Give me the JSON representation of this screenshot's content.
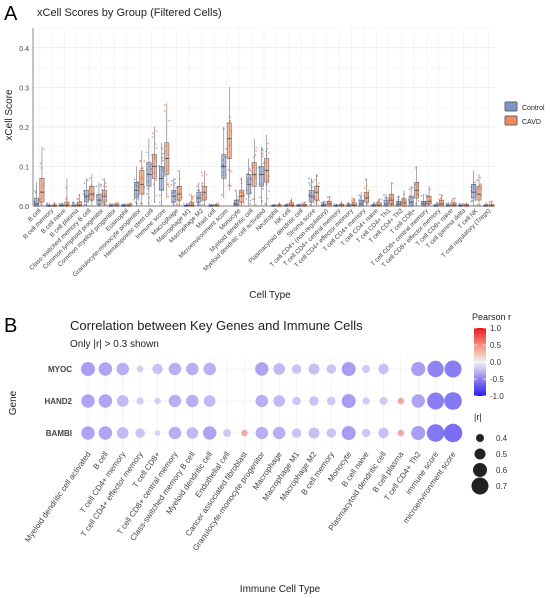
{
  "panels": {
    "a_letter": "A",
    "b_letter": "B"
  },
  "chart_data": [
    {
      "type": "box",
      "title": "xCell Scores by Group (Filtered Cells)",
      "xlabel": "Cell Type",
      "ylabel": "xCell Score",
      "ylim": [
        0,
        0.45
      ],
      "yticks": [
        "0.0",
        "0.1",
        "0.2",
        "0.3",
        "0.4"
      ],
      "grid": true,
      "legend_position": "right",
      "series": [
        {
          "name": "Control",
          "color": "#7f93c9"
        },
        {
          "name": "CAVD",
          "color": "#f08a5d"
        }
      ],
      "categories": [
        "B cell",
        "B cell memory",
        "B cell naive",
        "B cell plasma",
        "Class-switched memory B cell",
        "Common lymphoid progenitor",
        "Common myeloid progenitor",
        "Eosinophil",
        "Granulocyte-monocyte progenitor",
        "Hematopoietic stem cell",
        "Immune score",
        "Macrophage",
        "Macrophage M1",
        "Macrophage M2",
        "Mast cell",
        "Microenvironment score",
        "Monocyte",
        "Myeloid dendritic cell",
        "Myeloid dendritic cell activated",
        "Neutrophil",
        "NK cell",
        "Plasmacytoid dendritic cell",
        "Stroma score",
        "T cell CD4+ (non-regulatory)",
        "T cell CD4+ central memory",
        "T cell CD4+ effector memory",
        "T cell CD4+ memory",
        "T cell CD4+ naive",
        "T cell CD4+ Th1",
        "T cell CD4+ Th2",
        "T cell CD8+",
        "T cell CD8+ central memory",
        "T cell CD8+ effector memory",
        "T cell CD8+ naive",
        "T cell gamma delta",
        "T cell NK",
        "T cell regulatory (Tregs)"
      ],
      "boxes": [
        {
          "control": [
            0.0,
            0.0,
            0.005,
            0.02,
            0.06
          ],
          "cavd": [
            0.0,
            0.01,
            0.035,
            0.07,
            0.15
          ]
        },
        {
          "control": [
            0.0,
            0.0,
            0.0,
            0.002,
            0.008
          ],
          "cavd": [
            0.0,
            0.0,
            0.0,
            0.003,
            0.01
          ]
        },
        {
          "control": [
            0.0,
            0.0,
            0.0,
            0.002,
            0.006
          ],
          "cavd": [
            0.0,
            0.0,
            0.002,
            0.01,
            0.07
          ]
        },
        {
          "control": [
            0.0,
            0.0,
            0.0,
            0.003,
            0.01
          ],
          "cavd": [
            0.0,
            0.0,
            0.002,
            0.01,
            0.03
          ]
        },
        {
          "control": [
            0.0,
            0.01,
            0.025,
            0.04,
            0.07
          ],
          "cavd": [
            0.0,
            0.015,
            0.03,
            0.05,
            0.08
          ]
        },
        {
          "control": [
            0.0,
            0.005,
            0.015,
            0.03,
            0.06
          ],
          "cavd": [
            0.0,
            0.01,
            0.025,
            0.04,
            0.07
          ]
        },
        {
          "control": [
            0.0,
            0.0,
            0.0,
            0.002,
            0.006
          ],
          "cavd": [
            0.0,
            0.0,
            0.0,
            0.003,
            0.008
          ]
        },
        {
          "control": [
            0.0,
            0.0,
            0.0,
            0.002,
            0.005
          ],
          "cavd": [
            0.0,
            0.0,
            0.0,
            0.003,
            0.008
          ]
        },
        {
          "control": [
            0.0,
            0.02,
            0.04,
            0.06,
            0.1
          ],
          "cavd": [
            0.0,
            0.03,
            0.055,
            0.09,
            0.14
          ]
        },
        {
          "control": [
            0.0,
            0.05,
            0.08,
            0.11,
            0.17
          ],
          "cavd": [
            0.01,
            0.07,
            0.1,
            0.13,
            0.2
          ]
        },
        {
          "control": [
            0.0,
            0.04,
            0.07,
            0.1,
            0.16
          ],
          "cavd": [
            0.02,
            0.08,
            0.12,
            0.16,
            0.26
          ]
        },
        {
          "control": [
            0.0,
            0.01,
            0.025,
            0.04,
            0.07
          ],
          "cavd": [
            0.0,
            0.015,
            0.03,
            0.05,
            0.09
          ]
        },
        {
          "control": [
            0.0,
            0.0,
            0.0,
            0.002,
            0.006
          ],
          "cavd": [
            0.0,
            0.0,
            0.002,
            0.01,
            0.03
          ]
        },
        {
          "control": [
            0.0,
            0.01,
            0.02,
            0.035,
            0.06
          ],
          "cavd": [
            0.0,
            0.015,
            0.035,
            0.05,
            0.09
          ]
        },
        {
          "control": [
            0.0,
            0.0,
            0.0,
            0.002,
            0.005
          ],
          "cavd": [
            0.0,
            0.0,
            0.0,
            0.003,
            0.008
          ]
        },
        {
          "control": [
            0.02,
            0.07,
            0.1,
            0.13,
            0.2
          ],
          "cavd": [
            0.04,
            0.12,
            0.17,
            0.21,
            0.3
          ]
        },
        {
          "control": [
            0.0,
            0.0,
            0.005,
            0.015,
            0.04
          ],
          "cavd": [
            0.0,
            0.01,
            0.025,
            0.04,
            0.07
          ]
        },
        {
          "control": [
            0.0,
            0.03,
            0.055,
            0.08,
            0.12
          ],
          "cavd": [
            0.0,
            0.05,
            0.08,
            0.11,
            0.17
          ]
        },
        {
          "control": [
            0.0,
            0.05,
            0.08,
            0.1,
            0.15
          ],
          "cavd": [
            0.0,
            0.06,
            0.09,
            0.12,
            0.18
          ]
        },
        {
          "control": [
            0.0,
            0.0,
            0.0,
            0.002,
            0.006
          ],
          "cavd": [
            0.0,
            0.0,
            0.0,
            0.003,
            0.01
          ]
        },
        {
          "control": [
            0.0,
            0.0,
            0.0,
            0.002,
            0.006
          ],
          "cavd": [
            0.0,
            0.0,
            0.002,
            0.008,
            0.02
          ]
        },
        {
          "control": [
            0.0,
            0.0,
            0.0,
            0.002,
            0.006
          ],
          "cavd": [
            0.0,
            0.0,
            0.0,
            0.004,
            0.01
          ]
        },
        {
          "control": [
            0.0,
            0.01,
            0.025,
            0.04,
            0.07
          ],
          "cavd": [
            0.0,
            0.015,
            0.035,
            0.05,
            0.08
          ]
        },
        {
          "control": [
            0.0,
            0.0,
            0.002,
            0.005,
            0.012
          ],
          "cavd": [
            0.0,
            0.0,
            0.005,
            0.012,
            0.025
          ]
        },
        {
          "control": [
            0.0,
            0.0,
            0.0,
            0.002,
            0.006
          ],
          "cavd": [
            0.0,
            0.0,
            0.0,
            0.004,
            0.012
          ]
        },
        {
          "control": [
            0.0,
            0.0,
            0.0,
            0.003,
            0.01
          ],
          "cavd": [
            0.0,
            0.0,
            0.002,
            0.008,
            0.02
          ]
        },
        {
          "control": [
            0.0,
            0.0,
            0.005,
            0.015,
            0.035
          ],
          "cavd": [
            0.0,
            0.01,
            0.02,
            0.035,
            0.07
          ]
        },
        {
          "control": [
            0.0,
            0.0,
            0.0,
            0.003,
            0.01
          ],
          "cavd": [
            0.0,
            0.0,
            0.002,
            0.008,
            0.02
          ]
        },
        {
          "control": [
            0.0,
            0.0,
            0.005,
            0.015,
            0.03
          ],
          "cavd": [
            0.0,
            0.005,
            0.015,
            0.03,
            0.06
          ]
        },
        {
          "control": [
            0.0,
            0.0,
            0.005,
            0.012,
            0.025
          ],
          "cavd": [
            0.0,
            0.0,
            0.008,
            0.018,
            0.04
          ]
        },
        {
          "control": [
            0.0,
            0.0,
            0.01,
            0.025,
            0.05
          ],
          "cavd": [
            0.0,
            0.02,
            0.04,
            0.06,
            0.1
          ]
        },
        {
          "control": [
            0.0,
            0.0,
            0.005,
            0.012,
            0.03
          ],
          "cavd": [
            0.0,
            0.005,
            0.012,
            0.025,
            0.05
          ]
        },
        {
          "control": [
            0.0,
            0.0,
            0.0,
            0.003,
            0.01
          ],
          "cavd": [
            0.0,
            0.0,
            0.005,
            0.015,
            0.03
          ]
        },
        {
          "control": [
            0.0,
            0.0,
            0.0,
            0.003,
            0.01
          ],
          "cavd": [
            0.0,
            0.0,
            0.002,
            0.008,
            0.02
          ]
        },
        {
          "control": [
            0.0,
            0.0,
            0.0,
            0.002,
            0.006
          ],
          "cavd": [
            0.0,
            0.0,
            0.0,
            0.004,
            0.01
          ]
        },
        {
          "control": [
            0.0,
            0.02,
            0.035,
            0.055,
            0.09
          ],
          "cavd": [
            0.0,
            0.015,
            0.03,
            0.05,
            0.08
          ]
        },
        {
          "control": [
            0.0,
            0.0,
            0.0,
            0.003,
            0.01
          ],
          "cavd": [
            0.0,
            0.0,
            0.0,
            0.004,
            0.012
          ]
        }
      ]
    },
    {
      "type": "dot",
      "title": "Correlation between Key Genes and Immune Cells",
      "subtitle": "Only |r| > 0.3 shown",
      "xlabel": "Immune Cell Type",
      "ylabel": "Gene",
      "genes": [
        "MYOC",
        "HAND2",
        "BAMBI"
      ],
      "cell_types": [
        "Myeloid dendritic cell activated",
        "B cell",
        "T cell CD4+ memory",
        "T cell CD4+ effector memory",
        "T cell CD8+",
        "T cell CD8+ central memory",
        "Class-switched memory B cell",
        "Myeloid dendritic cell",
        "Endothelial cell",
        "Cancer associated fibroblast",
        "Granulocyte-monocyte progenitor",
        "Macrophage",
        "Macrophage M1",
        "Macrophage M2",
        "B cell memory",
        "Monocyte",
        "B cell naive",
        "Plasmacytoid dendritic cell",
        "B cell plasma",
        "T cell CD4+ Th2",
        "immune score",
        "microenvironment score"
      ],
      "color_legend": {
        "title": "Pearson r",
        "ticks": [
          "1.0",
          "0.5",
          "0.0",
          "-0.5",
          "-1.0"
        ],
        "range": [
          -1,
          1
        ]
      },
      "size_legend": {
        "title": "|r|",
        "values": [
          "0.4",
          "0.5",
          "0.6",
          "0.7"
        ]
      },
      "points": [
        {
          "gene": "MYOC",
          "cell": "Myeloid dendritic cell activated",
          "r": -0.6
        },
        {
          "gene": "MYOC",
          "cell": "B cell",
          "r": -0.58
        },
        {
          "gene": "MYOC",
          "cell": "T cell CD4+ memory",
          "r": -0.55
        },
        {
          "gene": "MYOC",
          "cell": "T cell CD4+ effector memory",
          "r": -0.35
        },
        {
          "gene": "MYOC",
          "cell": "T cell CD8+",
          "r": -0.48
        },
        {
          "gene": "MYOC",
          "cell": "T cell CD8+ central memory",
          "r": -0.55
        },
        {
          "gene": "MYOC",
          "cell": "Class-switched memory B cell",
          "r": -0.55
        },
        {
          "gene": "MYOC",
          "cell": "Myeloid dendritic cell",
          "r": -0.55
        },
        {
          "gene": "MYOC",
          "cell": "Granulocyte-monocyte progenitor",
          "r": -0.58
        },
        {
          "gene": "MYOC",
          "cell": "Macrophage",
          "r": -0.52
        },
        {
          "gene": "MYOC",
          "cell": "Macrophage M1",
          "r": -0.45
        },
        {
          "gene": "MYOC",
          "cell": "Macrophage M2",
          "r": -0.5
        },
        {
          "gene": "MYOC",
          "cell": "B cell memory",
          "r": -0.45
        },
        {
          "gene": "MYOC",
          "cell": "Monocyte",
          "r": -0.6
        },
        {
          "gene": "MYOC",
          "cell": "B cell naive",
          "r": -0.4
        },
        {
          "gene": "MYOC",
          "cell": "Plasmacytoid dendritic cell",
          "r": -0.48
        },
        {
          "gene": "MYOC",
          "cell": "T cell CD4+ Th2",
          "r": -0.6
        },
        {
          "gene": "MYOC",
          "cell": "immune score",
          "r": -0.68
        },
        {
          "gene": "MYOC",
          "cell": "microenvironment score",
          "r": -0.7
        },
        {
          "gene": "HAND2",
          "cell": "Myeloid dendritic cell activated",
          "r": -0.58
        },
        {
          "gene": "HAND2",
          "cell": "B cell",
          "r": -0.58
        },
        {
          "gene": "HAND2",
          "cell": "T cell CD4+ memory",
          "r": -0.52
        },
        {
          "gene": "HAND2",
          "cell": "T cell CD4+ effector memory",
          "r": -0.38
        },
        {
          "gene": "HAND2",
          "cell": "T cell CD8+",
          "r": -0.35
        },
        {
          "gene": "HAND2",
          "cell": "T cell CD8+ central memory",
          "r": -0.55
        },
        {
          "gene": "HAND2",
          "cell": "Class-switched memory B cell",
          "r": -0.55
        },
        {
          "gene": "HAND2",
          "cell": "Myeloid dendritic cell",
          "r": -0.52
        },
        {
          "gene": "HAND2",
          "cell": "Granulocyte-monocyte progenitor",
          "r": -0.55
        },
        {
          "gene": "HAND2",
          "cell": "Macrophage",
          "r": -0.52
        },
        {
          "gene": "HAND2",
          "cell": "Macrophage M1",
          "r": -0.42
        },
        {
          "gene": "HAND2",
          "cell": "Macrophage M2",
          "r": -0.45
        },
        {
          "gene": "HAND2",
          "cell": "B cell memory",
          "r": -0.42
        },
        {
          "gene": "HAND2",
          "cell": "Monocyte",
          "r": -0.6
        },
        {
          "gene": "HAND2",
          "cell": "B cell naive",
          "r": -0.38
        },
        {
          "gene": "HAND2",
          "cell": "Plasmacytoid dendritic cell",
          "r": -0.4
        },
        {
          "gene": "HAND2",
          "cell": "B cell plasma",
          "r": 0.35
        },
        {
          "gene": "HAND2",
          "cell": "T cell CD4+ Th2",
          "r": -0.58
        },
        {
          "gene": "HAND2",
          "cell": "immune score",
          "r": -0.7
        },
        {
          "gene": "HAND2",
          "cell": "microenvironment score",
          "r": -0.72
        },
        {
          "gene": "BAMBI",
          "cell": "Myeloid dendritic cell activated",
          "r": -0.58
        },
        {
          "gene": "BAMBI",
          "cell": "B cell",
          "r": -0.58
        },
        {
          "gene": "BAMBI",
          "cell": "T cell CD4+ memory",
          "r": -0.52
        },
        {
          "gene": "BAMBI",
          "cell": "T cell CD4+ effector memory",
          "r": -0.45
        },
        {
          "gene": "BAMBI",
          "cell": "T cell CD8+",
          "r": -0.32
        },
        {
          "gene": "BAMBI",
          "cell": "T cell CD8+ central memory",
          "r": -0.55
        },
        {
          "gene": "BAMBI",
          "cell": "Class-switched memory B cell",
          "r": -0.52
        },
        {
          "gene": "BAMBI",
          "cell": "Myeloid dendritic cell",
          "r": -0.58
        },
        {
          "gene": "BAMBI",
          "cell": "Endothelial cell",
          "r": -0.4
        },
        {
          "gene": "BAMBI",
          "cell": "Cancer associated fibroblast",
          "r": 0.35
        },
        {
          "gene": "BAMBI",
          "cell": "Granulocyte-monocyte progenitor",
          "r": -0.55
        },
        {
          "gene": "BAMBI",
          "cell": "Macrophage",
          "r": -0.55
        },
        {
          "gene": "BAMBI",
          "cell": "Macrophage M1",
          "r": -0.45
        },
        {
          "gene": "BAMBI",
          "cell": "Macrophage M2",
          "r": -0.5
        },
        {
          "gene": "BAMBI",
          "cell": "B cell memory",
          "r": -0.45
        },
        {
          "gene": "BAMBI",
          "cell": "Monocyte",
          "r": -0.6
        },
        {
          "gene": "BAMBI",
          "cell": "B cell naive",
          "r": -0.42
        },
        {
          "gene": "BAMBI",
          "cell": "Plasmacytoid dendritic cell",
          "r": -0.48
        },
        {
          "gene": "BAMBI",
          "cell": "B cell plasma",
          "r": 0.35
        },
        {
          "gene": "BAMBI",
          "cell": "T cell CD4+ Th2",
          "r": -0.6
        },
        {
          "gene": "BAMBI",
          "cell": "immune score",
          "r": -0.72
        },
        {
          "gene": "BAMBI",
          "cell": "microenvironment score",
          "r": -0.75
        }
      ]
    }
  ]
}
